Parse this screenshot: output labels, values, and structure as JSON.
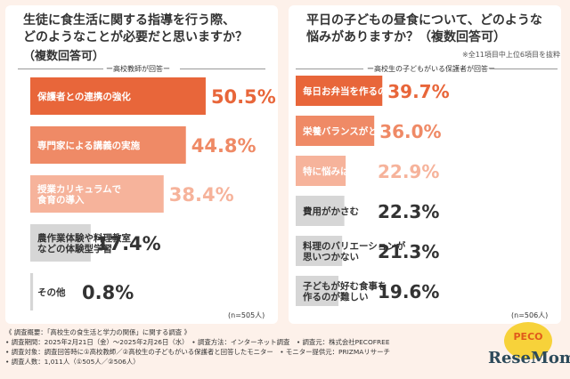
{
  "chart_data": [
    {
      "type": "bar",
      "title": "生徒に食生活に関する指導を行う際、どのようなことが必要だと思いますか？（複数回答可）",
      "title_lines": [
        "生徒に食生活に関する指導を行う際、",
        "どのようなことが必要だと思いますか？"
      ],
      "subtitle": "（複数回答可）",
      "respondent": "ー高校教師が回答ー",
      "categories": [
        "保護者との連携の強化",
        "専門家による講義の実施",
        "授業カリキュラムで食育の導入",
        "農作業体験や料理教室などの体験型学習",
        "その他"
      ],
      "category_lines": [
        [
          "保護者との連携の強化"
        ],
        [
          "専門家による講義の実施"
        ],
        [
          "授業カリキュラムで",
          "食育の導入"
        ],
        [
          "農作業体験や料理教室",
          "などの体験型学習"
        ],
        [
          "その他"
        ]
      ],
      "values": [
        50.5,
        44.8,
        38.4,
        17.4,
        0.8
      ],
      "value_labels": [
        "50.5%",
        "44.8%",
        "38.4%",
        "17.4%",
        "0.8%"
      ],
      "unit": "%",
      "bar_colors": [
        "#e8663a",
        "#ef8a66",
        "#f6b39b",
        "#d6d6d6",
        "#d6d6d6"
      ],
      "label_colors": [
        "#e8663a",
        "#ef8a66",
        "#f6b39b",
        "#333333",
        "#333333"
      ],
      "n_label": "(n=505人)"
    },
    {
      "type": "bar",
      "title": "平日の子どもの昼食について、どのような悩みがありますか？（複数回答可）",
      "title_lines": [
        "平日の子どもの昼食について、どのような",
        "悩みがありますか？（複数回答可）"
      ],
      "note": "※全11項目中上位6項目を抜粋",
      "respondent": "ー高校生の子どもがいる保護者が回答ー",
      "categories": [
        "毎日お弁当を作るのが大変",
        "栄養バランスがとれているか心配",
        "特に悩みはない",
        "費用がかさむ",
        "料理のバリエーションが思いつかない",
        "子どもが好む食事を作るのが難しい"
      ],
      "category_lines": [
        [
          "毎日お弁当を作るのが大変"
        ],
        [
          "栄養バランスがとれているか心配"
        ],
        [
          "特に悩みはない"
        ],
        [
          "費用がかさむ"
        ],
        [
          "料理のバリエーションが",
          "思いつかない"
        ],
        [
          "子どもが好む食事を",
          "作るのが難しい"
        ]
      ],
      "values": [
        39.7,
        36.0,
        22.9,
        22.3,
        21.3,
        19.6
      ],
      "value_labels": [
        "39.7%",
        "36.0%",
        "22.9%",
        "22.3%",
        "21.3%",
        "19.6%"
      ],
      "unit": "%",
      "bar_colors": [
        "#e8663a",
        "#ef8a66",
        "#f6b39b",
        "#d6d6d6",
        "#d6d6d6",
        "#d6d6d6"
      ],
      "label_colors": [
        "#e8663a",
        "#ef8a66",
        "#f6b39b",
        "#333333",
        "#333333",
        "#333333"
      ],
      "n_label": "(n=506人)"
    }
  ],
  "footer": {
    "lines": [
      "《 調査概要：「高校生の食生活と学力の関係」に関する調査 》",
      "• 調査期間：2025年2月21日（金）〜2025年2月26日（水）　• 調査方法：インターネット調査　• 調査元：株式会社PECOFREE",
      "• 調査対象：調査回答時に①高校教師／②高校生の子どもがいる保護者と回答したモニター　• モニター提供元：PRIZMAリサーチ",
      "• 調査人数：1,011人（①505人／②506人）"
    ]
  },
  "logos": {
    "peco": "PECO",
    "resemom": "ReseMom"
  }
}
